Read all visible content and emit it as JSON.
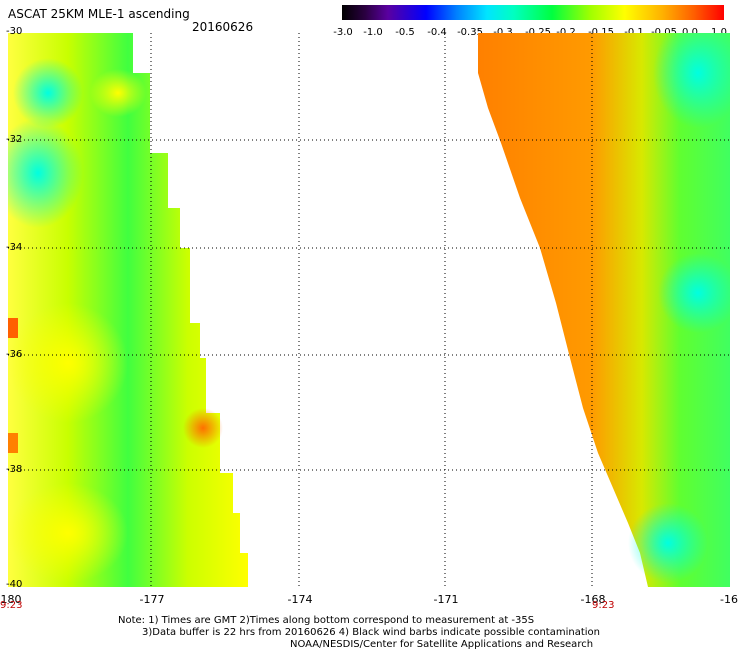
{
  "title": "ASCAT 25KM MLE-1 ascending",
  "date": "20160626",
  "colorbar": {
    "ticks": [
      "-3.0",
      "-1.0",
      "-0.5",
      "-0.4",
      "-0.35",
      "-0.3",
      "-0.25",
      "-0.2",
      "-0.15",
      "-0.1",
      "-0.05",
      "0.0",
      "1.0"
    ],
    "colors": [
      "#000000",
      "#5a00a0",
      "#0000ff",
      "#00e5ff",
      "#00ff40",
      "#ffff00",
      "#ffb000",
      "#ff0000"
    ]
  },
  "map": {
    "lat_labels": [
      "-30",
      "-32",
      "-34",
      "-36",
      "-38",
      "-40"
    ],
    "lon_labels": [
      "-180",
      "-177",
      "-174",
      "-171",
      "-168",
      "-16"
    ],
    "time_labels": [
      "9:23",
      "9:23"
    ]
  },
  "notes": {
    "line1": "Note: 1) Times are GMT 2)Times along bottom correspond to measurement at -35S",
    "line2": "3)Data buffer is 22 hrs from 20160626 4) Black wind barbs indicate possible contamination",
    "line3": "NOAA/NESDIS/Center for Satellite Applications and Research"
  }
}
